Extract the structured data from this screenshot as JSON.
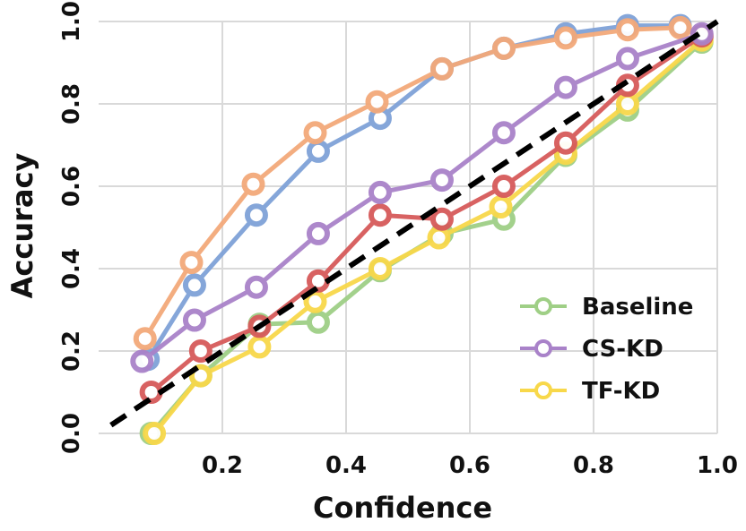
{
  "chart_data": {
    "type": "line",
    "title": "",
    "xlabel": "Confidence",
    "ylabel": "Accuracy",
    "xlim": [
      0.0,
      1.0
    ],
    "ylim": [
      0.0,
      1.0
    ],
    "x_ticks": [
      "0.2",
      "0.4",
      "0.6",
      "0.8",
      "1.0"
    ],
    "y_ticks": [
      "0.0",
      "0.2",
      "0.4",
      "0.6",
      "0.8",
      "1.0"
    ],
    "grid": true,
    "legend_position": "bottom-right",
    "legend": [
      "Baseline",
      "CS-KD",
      "TF-KD"
    ],
    "series": [
      {
        "name": "Blue series",
        "color": "#7fa2d8",
        "in_legend": false,
        "x": [
          0.08,
          0.155,
          0.255,
          0.355,
          0.455,
          0.555,
          0.655,
          0.755,
          0.855,
          0.94,
          0.975
        ],
        "y": [
          0.18,
          0.36,
          0.53,
          0.685,
          0.765,
          0.885,
          0.935,
          0.97,
          0.99,
          0.99,
          0.96
        ]
      },
      {
        "name": "Orange series",
        "color": "#f3a97a",
        "in_legend": false,
        "x": [
          0.075,
          0.15,
          0.25,
          0.35,
          0.45,
          0.555,
          0.655,
          0.755,
          0.855,
          0.94,
          0.975
        ],
        "y": [
          0.23,
          0.415,
          0.605,
          0.73,
          0.805,
          0.885,
          0.935,
          0.96,
          0.98,
          0.985,
          0.965
        ]
      },
      {
        "name": "Baseline",
        "color": "#9fcf86",
        "in_legend": true,
        "x": [
          0.085,
          0.165,
          0.26,
          0.355,
          0.455,
          0.555,
          0.655,
          0.755,
          0.855,
          0.975
        ],
        "y": [
          0.0,
          0.14,
          0.265,
          0.27,
          0.395,
          0.485,
          0.52,
          0.675,
          0.785,
          0.95
        ]
      },
      {
        "name": "TF-KD",
        "color": "#f8d84a",
        "in_legend": true,
        "x": [
          0.09,
          0.165,
          0.26,
          0.35,
          0.455,
          0.55,
          0.65,
          0.755,
          0.855,
          0.975
        ],
        "y": [
          0.0,
          0.14,
          0.21,
          0.32,
          0.4,
          0.475,
          0.55,
          0.68,
          0.8,
          0.955
        ]
      },
      {
        "name": "Red series",
        "color": "#d65a5a",
        "in_legend": false,
        "x": [
          0.085,
          0.165,
          0.26,
          0.355,
          0.455,
          0.555,
          0.655,
          0.755,
          0.855,
          0.975
        ],
        "y": [
          0.1,
          0.2,
          0.26,
          0.37,
          0.53,
          0.52,
          0.6,
          0.705,
          0.845,
          0.965
        ]
      },
      {
        "name": "CS-KD",
        "color": "#a982c9",
        "in_legend": true,
        "x": [
          0.07,
          0.155,
          0.255,
          0.355,
          0.455,
          0.555,
          0.655,
          0.755,
          0.855,
          0.975
        ],
        "y": [
          0.175,
          0.275,
          0.355,
          0.485,
          0.585,
          0.615,
          0.73,
          0.84,
          0.91,
          0.97
        ]
      }
    ],
    "reference_line": {
      "x": [
        0.02,
        1.0
      ],
      "y": [
        0.02,
        1.0
      ],
      "color": "#000000",
      "style": "dashed"
    }
  }
}
